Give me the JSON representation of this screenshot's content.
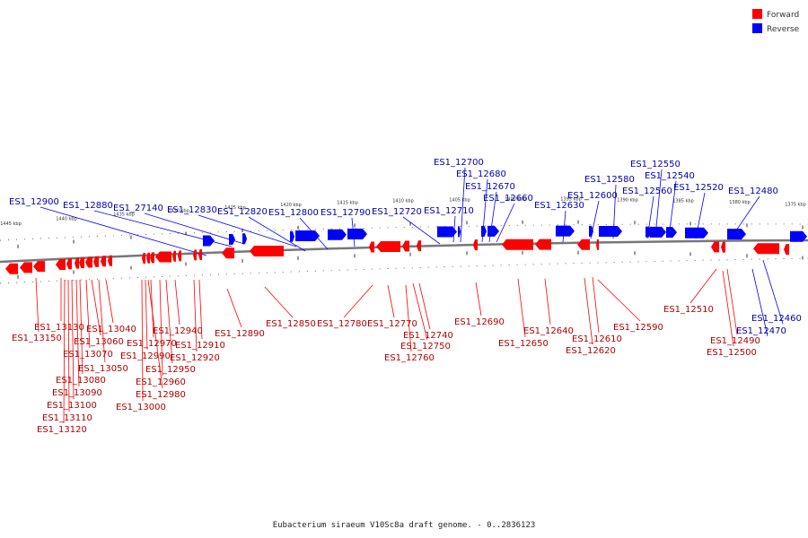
{
  "legend": {
    "forward_label": "Forward",
    "reverse_label": "Reverse",
    "forward_color": "#ff0000",
    "reverse_color": "#0000ff"
  },
  "caption": "Eubacterium siraeum V10Sc8a draft genome. - 0..2836123",
  "ruler_labels": [
    "1445 kbp",
    "1440 kbp",
    "1435 kbp",
    "1430 kbp",
    "1425 kbp",
    "1420 kbp",
    "1415 kbp",
    "1410 kbp",
    "1405 kbp",
    "1400 kbp",
    "1395 kbp",
    "1390 kbp",
    "1385 kbp",
    "1380 kbp",
    "1375 kbp"
  ],
  "reverse_genes": [
    "ES1_12900",
    "ES1_12880",
    "ES1_27140",
    "ES1_12830",
    "ES1_12820",
    "ES1_12800",
    "ES1_12790",
    "ES1_12720",
    "ES1_12710",
    "ES1_12700",
    "ES1_12680",
    "ES1_12670",
    "ES1_12660",
    "ES1_12630",
    "ES1_12600",
    "ES1_12580",
    "ES1_12560",
    "ES1_12550",
    "ES1_12540",
    "ES1_12520",
    "ES1_12480",
    "ES1_12470",
    "ES1_12460"
  ],
  "forward_genes": [
    "ES1_13150",
    "ES1_13130",
    "ES1_13120",
    "ES1_13110",
    "ES1_13100",
    "ES1_13090",
    "ES1_13080",
    "ES1_13070",
    "ES1_13060",
    "ES1_13050",
    "ES1_13040",
    "ES1_13000",
    "ES1_12990",
    "ES1_12980",
    "ES1_12970",
    "ES1_12960",
    "ES1_12950",
    "ES1_12940",
    "ES1_12920",
    "ES1_12910",
    "ES1_12890",
    "ES1_12850",
    "ES1_12780",
    "ES1_12770",
    "ES1_12760",
    "ES1_12750",
    "ES1_12740",
    "ES1_12690",
    "ES1_12650",
    "ES1_12640",
    "ES1_12620",
    "ES1_12610",
    "ES1_12590",
    "ES1_12510",
    "ES1_12500",
    "ES1_12490"
  ]
}
